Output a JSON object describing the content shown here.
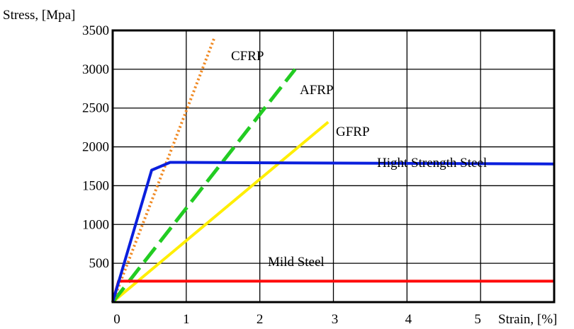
{
  "chart_data": {
    "type": "line",
    "ylabel": "Stress, [Mpa]",
    "xlabel": "Strain, [%]",
    "xlim": [
      0,
      6
    ],
    "ylim": [
      0,
      3500
    ],
    "x_ticks": [
      0,
      1,
      2,
      3,
      4,
      5
    ],
    "y_ticks": [
      500,
      1000,
      1500,
      2000,
      2500,
      3000,
      3500
    ],
    "grid": true,
    "series": [
      {
        "name": "CFRP",
        "color": "#f08a24",
        "dash": "dotted",
        "points": [
          [
            0,
            0
          ],
          [
            1.38,
            3400
          ]
        ]
      },
      {
        "name": "AFRP",
        "color": "#22cc22",
        "dash": "dashed",
        "points": [
          [
            0,
            0
          ],
          [
            2.48,
            3000
          ]
        ]
      },
      {
        "name": "GFRP",
        "color": "#ffee00",
        "dash": "solid",
        "points": [
          [
            0,
            0
          ],
          [
            2.93,
            2320
          ]
        ]
      },
      {
        "name": "Hight Strength Steel",
        "color": "#0a1fdd",
        "dash": "solid",
        "points": [
          [
            0,
            0
          ],
          [
            0.53,
            1700
          ],
          [
            0.78,
            1800
          ],
          [
            6.0,
            1780
          ]
        ]
      },
      {
        "name": "Mild Steel",
        "color": "#ff0a0a",
        "dash": "solid",
        "points": [
          [
            0,
            0
          ],
          [
            0.08,
            270
          ],
          [
            6.0,
            270
          ]
        ]
      }
    ]
  }
}
